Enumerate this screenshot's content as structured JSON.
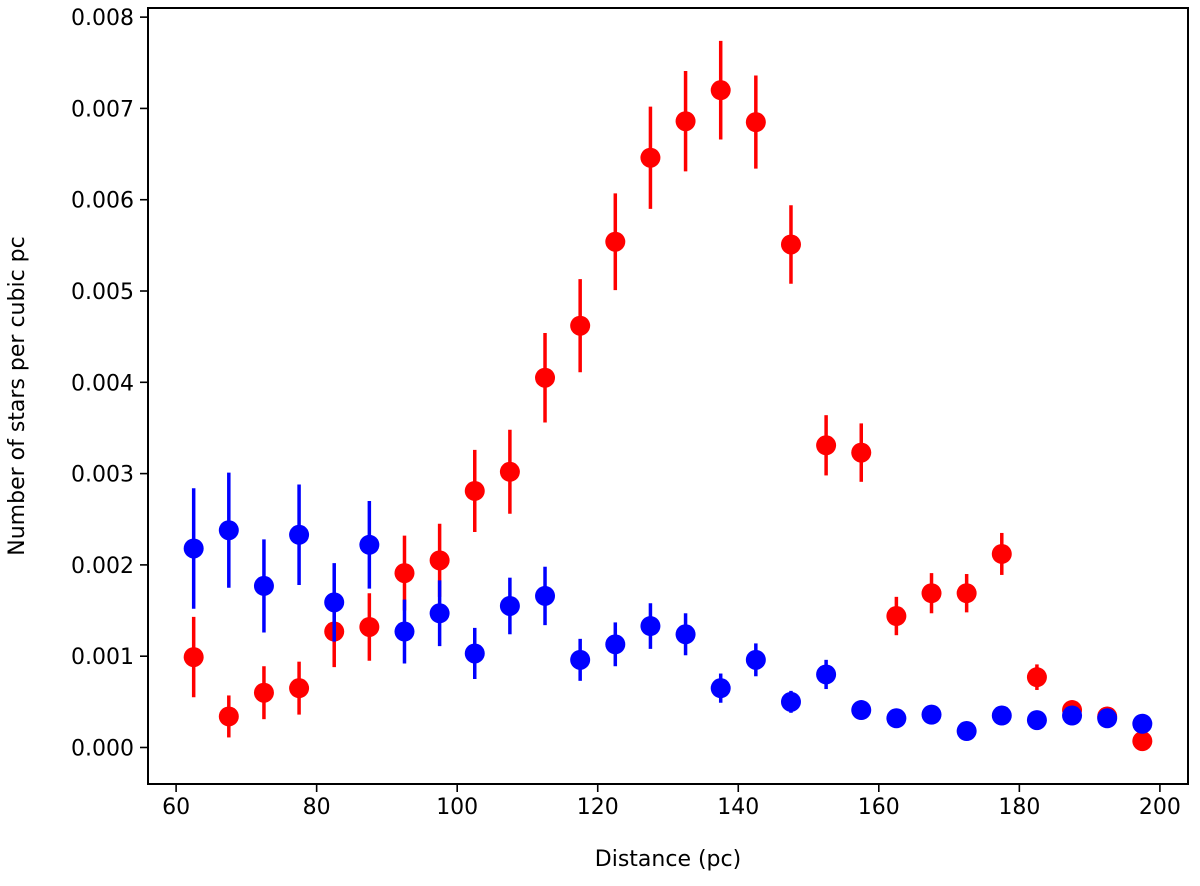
{
  "chart_data": {
    "type": "scatter",
    "title": "",
    "xlabel": "Distance (pc)",
    "ylabel": "Number of stars per cubic pc",
    "xlim": [
      56,
      204
    ],
    "ylim": [
      -0.0004,
      0.0081
    ],
    "xticks": [
      60,
      80,
      100,
      120,
      140,
      160,
      180,
      200
    ],
    "xtick_labels": [
      "60",
      "80",
      "100",
      "120",
      "140",
      "160",
      "180",
      "200"
    ],
    "yticks": [
      0.0,
      0.001,
      0.002,
      0.003,
      0.004,
      0.005,
      0.006,
      0.007,
      0.008
    ],
    "ytick_labels": [
      "0.000",
      "0.001",
      "0.002",
      "0.003",
      "0.004",
      "0.005",
      "0.006",
      "0.007",
      "0.008"
    ],
    "grid": false,
    "legend": "none",
    "x": [
      62.5,
      67.5,
      72.5,
      77.5,
      82.5,
      87.5,
      92.5,
      97.5,
      102.5,
      107.5,
      112.5,
      117.5,
      122.5,
      127.5,
      132.5,
      137.5,
      142.5,
      147.5,
      152.5,
      157.5,
      162.5,
      167.5,
      172.5,
      177.5,
      182.5,
      187.5,
      192.5,
      197.5
    ],
    "series": [
      {
        "color": "#ff0000",
        "values": [
          0.00099,
          0.00034,
          0.0006,
          0.00065,
          0.00127,
          0.00132,
          0.00191,
          0.00205,
          0.00281,
          0.00302,
          0.00405,
          0.00462,
          0.00554,
          0.00646,
          0.00686,
          0.0072,
          0.00685,
          0.00551,
          0.00331,
          0.00323,
          0.00144,
          0.00169,
          0.00169,
          0.00212,
          0.00077,
          0.00041,
          0.00034,
          7e-05
        ],
        "errors": [
          0.00044,
          0.00023,
          0.00029,
          0.00029,
          0.00039,
          0.00037,
          0.00041,
          0.0004,
          0.00045,
          0.00046,
          0.00049,
          0.00051,
          0.00053,
          0.00056,
          0.00055,
          0.00054,
          0.00051,
          0.00043,
          0.00033,
          0.00032,
          0.00021,
          0.00022,
          0.00021,
          0.00023,
          0.00014,
          8e-05,
          6e-05,
          3e-05
        ]
      },
      {
        "color": "#0000ff",
        "values": [
          0.00218,
          0.00238,
          0.00177,
          0.00233,
          0.00159,
          0.00222,
          0.00127,
          0.00147,
          0.00103,
          0.00155,
          0.00166,
          0.00096,
          0.00113,
          0.00133,
          0.00124,
          0.00065,
          0.00096,
          0.0005,
          0.0008,
          0.00041,
          0.00032,
          0.00036,
          0.00018,
          0.00035,
          0.0003,
          0.00035,
          0.00032,
          0.00026
        ],
        "errors": [
          0.00066,
          0.00063,
          0.00051,
          0.00055,
          0.00043,
          0.00048,
          0.00035,
          0.00036,
          0.00028,
          0.00031,
          0.00032,
          0.00023,
          0.00024,
          0.00025,
          0.00023,
          0.00016,
          0.00018,
          0.00012,
          0.00016,
          9e-05,
          7e-05,
          7e-05,
          5e-05,
          6e-05,
          5e-05,
          5e-05,
          4e-05,
          4e-05
        ]
      }
    ]
  }
}
